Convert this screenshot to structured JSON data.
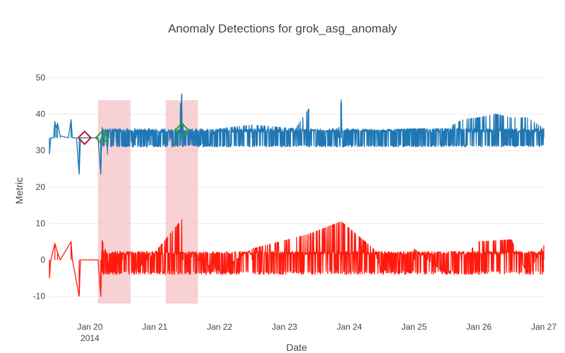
{
  "chart_data": {
    "type": "line",
    "title": "Anomaly Detections for grok_asg_anomaly",
    "xlabel": "Date",
    "ylabel": "Metric",
    "x_range": [
      "2014-01-19 09:00",
      "2014-01-27 00:00"
    ],
    "ylim": [
      -12,
      50
    ],
    "y_ticks": [
      -10,
      0,
      10,
      20,
      30,
      40,
      50
    ],
    "x_ticks": [
      {
        "date": "2014-01-20",
        "label": "Jan 20",
        "sublabel": "2014"
      },
      {
        "date": "2014-01-21",
        "label": "Jan 21",
        "sublabel": ""
      },
      {
        "date": "2014-01-22",
        "label": "Jan 22",
        "sublabel": ""
      },
      {
        "date": "2014-01-23",
        "label": "Jan 23",
        "sublabel": ""
      },
      {
        "date": "2014-01-24",
        "label": "Jan 24",
        "sublabel": ""
      },
      {
        "date": "2014-01-25",
        "label": "Jan 25",
        "sublabel": ""
      },
      {
        "date": "2014-01-26",
        "label": "Jan 26",
        "sublabel": ""
      },
      {
        "date": "2014-01-27",
        "label": "Jan 27",
        "sublabel": ""
      }
    ],
    "grid": true,
    "colors": {
      "metric": "#1f77b4",
      "difference": "#ff1a0d",
      "window_fill": "#f2b8bc",
      "anomaly_red": "#b2182b",
      "anomaly_green": "#2ca02c"
    },
    "anomaly_windows": [
      {
        "start": "2014-01-20 03:00",
        "end": "2014-01-20 15:00"
      },
      {
        "start": "2014-01-21 04:00",
        "end": "2014-01-21 16:00"
      }
    ],
    "anomaly_markers": [
      {
        "date": "2014-01-19 22:00",
        "value": 33.5,
        "color": "red"
      },
      {
        "date": "2014-01-20 04:30",
        "value": 33.5,
        "color": "green"
      },
      {
        "date": "2014-01-21 10:00",
        "value": 35.7,
        "color": "green"
      }
    ],
    "series": [
      {
        "key": "metric",
        "data": [
          [
            "2014-01-19 09:00",
            29.0
          ],
          [
            "2014-01-19 09:30",
            33.5
          ],
          [
            "2014-01-19 10:30",
            33.5
          ],
          [
            "2014-01-19 11:00",
            38.0
          ],
          [
            "2014-01-19 11:30",
            36.0
          ],
          [
            "2014-01-19 12:00",
            37.5
          ],
          [
            "2014-01-19 13:00",
            34.0
          ],
          [
            "2014-01-19 16:00",
            33.5
          ],
          [
            "2014-01-19 17:00",
            38.5
          ],
          [
            "2014-01-19 17:30",
            33.5
          ],
          [
            "2014-01-19 19:00",
            33.5
          ],
          [
            "2014-01-19 20:00",
            23.5
          ],
          [
            "2014-01-19 20:30",
            33.5
          ],
          [
            "2014-01-20 03:00",
            33.5
          ],
          [
            "2014-01-20 04:00",
            23.5
          ],
          [
            "2014-01-20 04:30",
            36.5
          ],
          [
            "2014-01-20 05:00",
            31.0
          ],
          [
            "2014-01-20 06:00",
            35.5
          ],
          [
            "2014-01-20 06:30",
            29.0
          ],
          [
            "2014-01-20 07:00",
            35.5
          ],
          [
            "2014-01-20 08:00",
            31.0
          ],
          [
            "2014-01-20 09:00",
            35.5
          ],
          [
            "2014-01-20 10:00",
            31.0
          ],
          [
            "2014-01-20 11:00",
            35.5
          ],
          [
            "2014-01-20 12:00",
            31.0
          ],
          [
            "2014-01-20 14:00",
            35.5
          ],
          [
            "2014-01-20 16:00",
            31.0
          ],
          [
            "2014-01-20 18:00",
            35.5
          ],
          [
            "2014-01-20 20:00",
            31.0
          ],
          [
            "2014-01-21 00:00",
            35.5
          ],
          [
            "2014-01-21 04:00",
            31.0
          ],
          [
            "2014-01-21 08:00",
            35.5
          ],
          [
            "2014-01-21 10:00",
            45.5
          ],
          [
            "2014-01-21 10:30",
            35.5
          ],
          [
            "2014-01-21 16:00",
            31.0
          ],
          [
            "2014-01-22 00:00",
            36.0
          ],
          [
            "2014-01-22 12:00",
            37.0
          ],
          [
            "2014-01-23 04:00",
            36.0
          ],
          [
            "2014-01-23 09:00",
            41.5
          ],
          [
            "2014-01-23 10:00",
            35.5
          ],
          [
            "2014-01-23 20:00",
            35.5
          ],
          [
            "2014-01-23 21:00",
            44.0
          ],
          [
            "2014-01-23 22:00",
            35.5
          ],
          [
            "2014-01-24 12:00",
            35.5
          ],
          [
            "2014-01-25 00:00",
            36.0
          ],
          [
            "2014-01-25 12:00",
            36.0
          ],
          [
            "2014-01-25 18:00",
            38.5
          ],
          [
            "2014-01-26 00:00",
            39.0
          ],
          [
            "2014-01-26 06:00",
            40.0
          ],
          [
            "2014-01-26 12:00",
            39.0
          ],
          [
            "2014-01-26 18:00",
            39.0
          ],
          [
            "2014-01-27 00:00",
            36.0
          ]
        ]
      },
      {
        "key": "difference",
        "data": [
          [
            "2014-01-19 09:00",
            -5.0
          ],
          [
            "2014-01-19 09:30",
            0.0
          ],
          [
            "2014-01-19 11:00",
            4.5
          ],
          [
            "2014-01-19 12:00",
            2.0
          ],
          [
            "2014-01-19 13:00",
            0.0
          ],
          [
            "2014-01-19 17:00",
            5.0
          ],
          [
            "2014-01-19 17:30",
            0.0
          ],
          [
            "2014-01-19 20:00",
            -10.0
          ],
          [
            "2014-01-19 20:30",
            0.0
          ],
          [
            "2014-01-20 03:00",
            0.0
          ],
          [
            "2014-01-20 04:00",
            -10.0
          ],
          [
            "2014-01-20 04:30",
            5.5
          ],
          [
            "2014-01-20 06:00",
            2.0
          ],
          [
            "2014-01-20 08:00",
            -3.5
          ],
          [
            "2014-01-20 12:00",
            2.0
          ],
          [
            "2014-01-20 16:00",
            -3.5
          ],
          [
            "2014-01-21 00:00",
            2.0
          ],
          [
            "2014-01-21 10:00",
            11.0
          ],
          [
            "2014-01-21 10:30",
            2.0
          ],
          [
            "2014-01-22 00:00",
            -3.0
          ],
          [
            "2014-01-22 12:00",
            3.0
          ],
          [
            "2014-01-23 09:00",
            7.0
          ],
          [
            "2014-01-23 21:00",
            10.5
          ],
          [
            "2014-01-24 09:00",
            3.0
          ],
          [
            "2014-01-24 12:00",
            -3.5
          ],
          [
            "2014-01-25 00:00",
            3.0
          ],
          [
            "2014-01-25 12:00",
            -4.0
          ],
          [
            "2014-01-26 00:00",
            5.0
          ],
          [
            "2014-01-26 12:00",
            5.5
          ],
          [
            "2014-01-26 18:00",
            -4.0
          ],
          [
            "2014-01-27 00:00",
            4.0
          ]
        ]
      }
    ]
  }
}
